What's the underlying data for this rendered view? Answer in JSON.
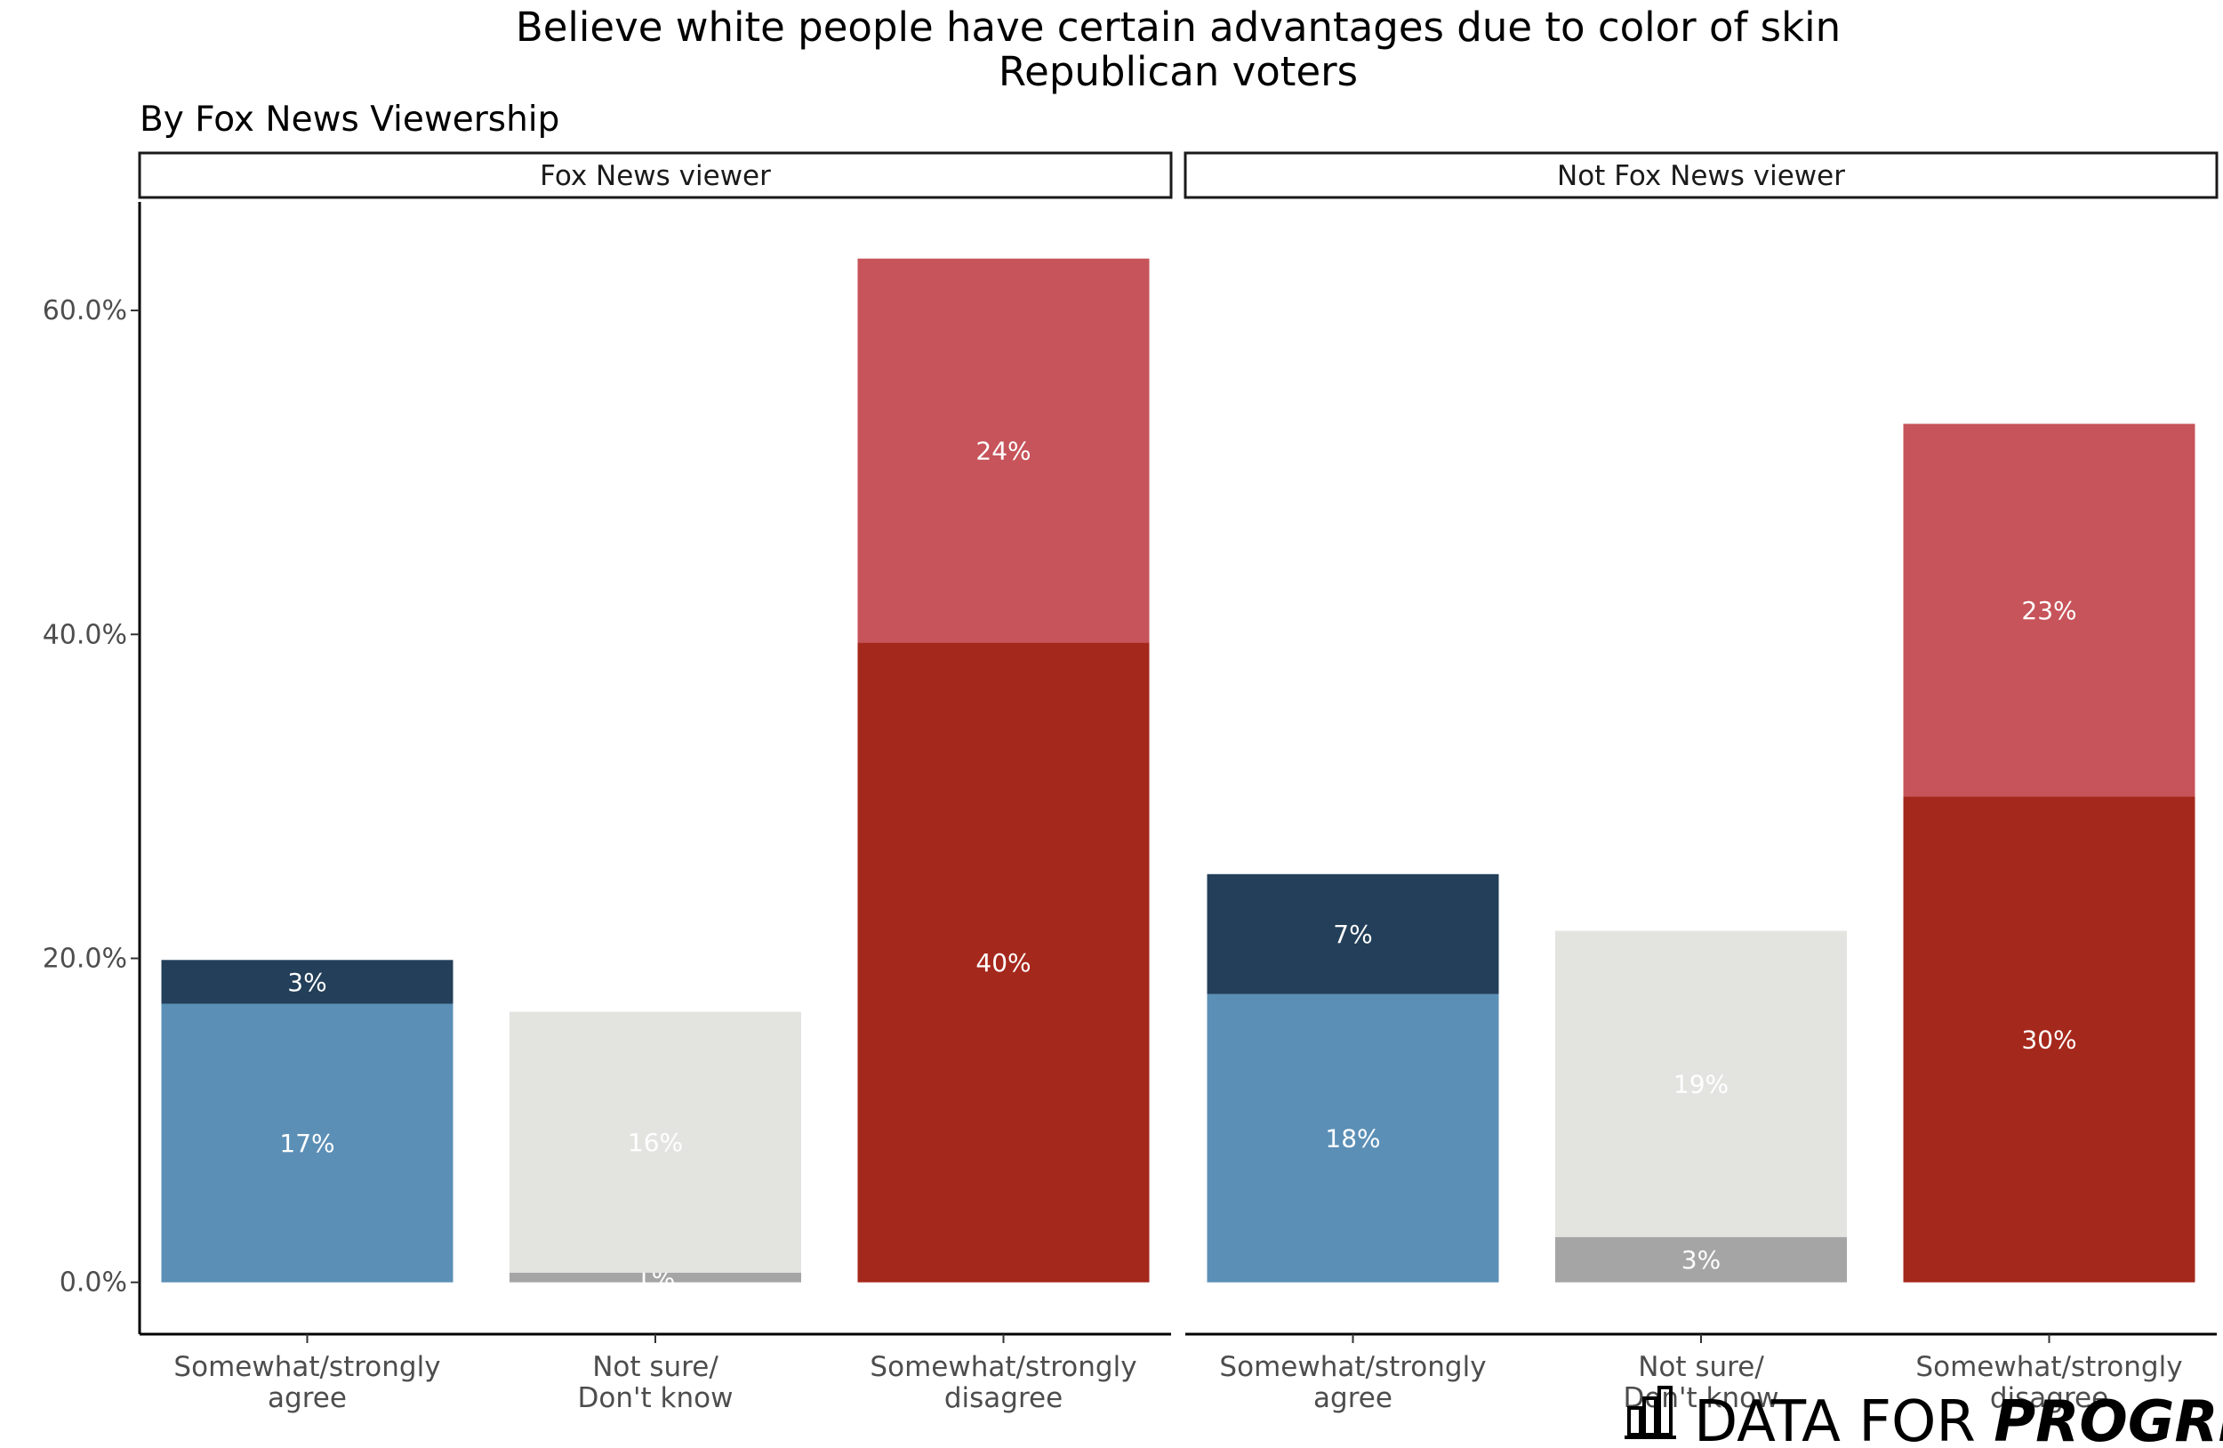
{
  "chart_data": {
    "type": "bar",
    "stacked": true,
    "title": "Believe white people have certain advantages due to color of skin",
    "title_line2": "Republican voters",
    "subtitle": "By Fox News Viewership",
    "ylim": [
      -3.2,
      66.7
    ],
    "yticks": [
      0,
      20,
      40,
      60
    ],
    "ytick_labels": [
      "0.0%",
      "20.0%",
      "40.0%",
      "60.0%"
    ],
    "categories": [
      "Somewhat/strongly agree",
      "Not sure/ Don't know",
      "Somewhat/strongly disagree"
    ],
    "category_lines": [
      [
        "Somewhat/strongly",
        "agree"
      ],
      [
        "Not sure/",
        "Don't know"
      ],
      [
        "Somewhat/strongly",
        "disagree"
      ]
    ],
    "panels": [
      {
        "name": "Fox News viewer",
        "bars": [
          {
            "category": "Somewhat/strongly agree",
            "segments": [
              {
                "value": 17.2,
                "label": "17%",
                "color": "#5b8fb6"
              },
              {
                "value": 2.7,
                "label": "3%",
                "color": "#233f59"
              }
            ]
          },
          {
            "category": "Not sure/ Don't know",
            "segments": [
              {
                "value": 0.6,
                "label": "1%",
                "color": "#a5a5a5"
              },
              {
                "value": 16.1,
                "label": "16%",
                "color": "#e3e3e0"
              }
            ]
          },
          {
            "category": "Somewhat/strongly disagree",
            "segments": [
              {
                "value": 39.5,
                "label": "40%",
                "color": "#a5281c"
              },
              {
                "value": 23.7,
                "label": "24%",
                "color": "#c6545a"
              }
            ]
          }
        ]
      },
      {
        "name": "Not Fox News viewer",
        "bars": [
          {
            "category": "Somewhat/strongly agree",
            "segments": [
              {
                "value": 17.8,
                "label": "18%",
                "color": "#5b8fb6"
              },
              {
                "value": 7.4,
                "label": "7%",
                "color": "#233f59"
              }
            ]
          },
          {
            "category": "Not sure/ Don't know",
            "segments": [
              {
                "value": 2.8,
                "label": "3%",
                "color": "#a5a5a5"
              },
              {
                "value": 18.9,
                "label": "19%",
                "color": "#e3e3e0"
              }
            ]
          },
          {
            "category": "Somewhat/strongly disagree",
            "segments": [
              {
                "value": 30.0,
                "label": "30%",
                "color": "#a5281c"
              },
              {
                "value": 23.0,
                "label": "23%",
                "color": "#c6545a"
              }
            ]
          }
        ]
      }
    ]
  },
  "logo": {
    "light_text": "DATA FOR ",
    "bold_text": "PROGRESS",
    "icon": "bar-chart-icon"
  }
}
